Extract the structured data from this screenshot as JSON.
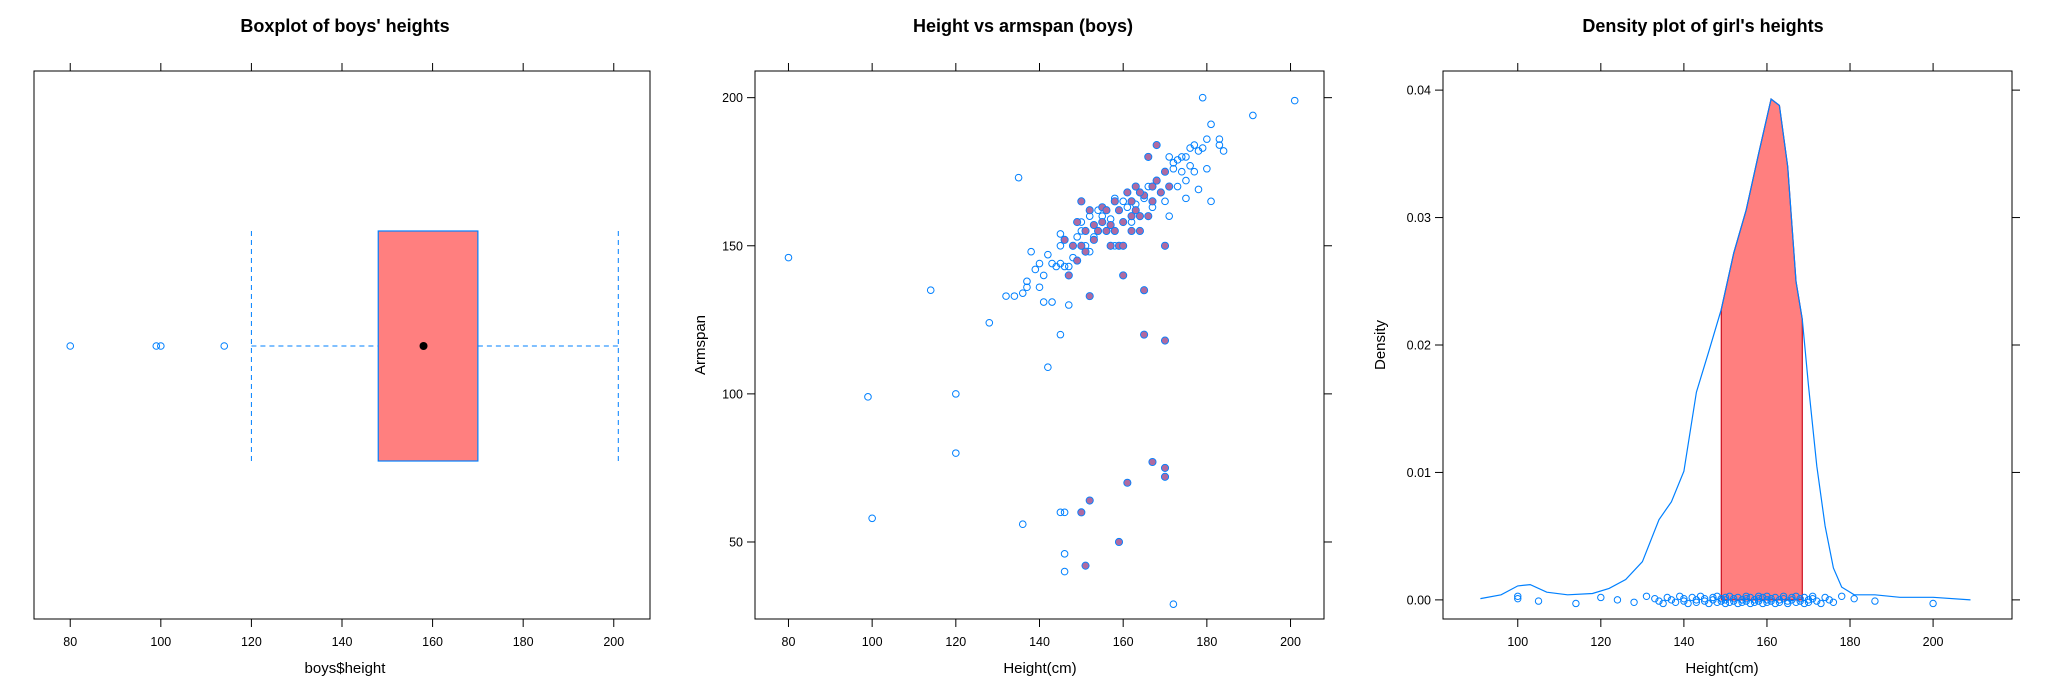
{
  "chart_data": [
    {
      "type": "box",
      "title": "Boxplot of boys' heights",
      "xlabel": "boys$height",
      "ylabel": "",
      "xlim": [
        72,
        208
      ],
      "xticks": [
        80,
        100,
        120,
        140,
        160,
        180,
        200
      ],
      "box": {
        "whisker_low": 120,
        "q1": 148,
        "median": 158,
        "q3": 170,
        "whisker_high": 201
      },
      "outliers": [
        80,
        99,
        100,
        114
      ],
      "colors": {
        "box_fill": "#ff7f7f",
        "box_border": "#0080ff",
        "whisker": "#0080ff",
        "median_dot": "#000000",
        "outlier": "#0080ff"
      }
    },
    {
      "type": "scatter",
      "title": "Height vs armspan (boys)",
      "xlabel": "Height(cm)",
      "ylabel": "Armspan",
      "xlim": [
        72,
        208
      ],
      "ylim": [
        24,
        209
      ],
      "xticks": [
        80,
        100,
        120,
        140,
        160,
        180,
        200
      ],
      "yticks": [
        50,
        100,
        150,
        200
      ],
      "series": [
        {
          "style": "open-circle",
          "color": "#0080ff",
          "points": [
            [
              80,
              146
            ],
            [
              99,
              99
            ],
            [
              100,
              58
            ],
            [
              114,
              135
            ],
            [
              120,
              100
            ],
            [
              120,
              80
            ],
            [
              128,
              124
            ],
            [
              132,
              133
            ],
            [
              134,
              133
            ],
            [
              135,
              173
            ],
            [
              136,
              134
            ],
            [
              137,
              138
            ],
            [
              137,
              136
            ],
            [
              138,
              148
            ],
            [
              139,
              142
            ],
            [
              140,
              144
            ],
            [
              140,
              136
            ],
            [
              141,
              131
            ],
            [
              141,
              140
            ],
            [
              142,
              109
            ],
            [
              142,
              147
            ],
            [
              143,
              131
            ],
            [
              143,
              144
            ],
            [
              144,
              143
            ],
            [
              145,
              120
            ],
            [
              145,
              150
            ],
            [
              145,
              154
            ],
            [
              145,
              144
            ],
            [
              146,
              143
            ],
            [
              146,
              40
            ],
            [
              146,
              46
            ],
            [
              146,
              60
            ],
            [
              136,
              56
            ],
            [
              145,
              60
            ],
            [
              147,
              130
            ],
            [
              147,
              143
            ],
            [
              148,
              146
            ],
            [
              149,
              153
            ],
            [
              150,
              155
            ],
            [
              150,
              158
            ],
            [
              151,
              150
            ],
            [
              152,
              148
            ],
            [
              152,
              160
            ],
            [
              153,
              153
            ],
            [
              154,
              162
            ],
            [
              155,
              160
            ],
            [
              156,
              155
            ],
            [
              157,
              159
            ],
            [
              158,
              150
            ],
            [
              158,
              166
            ],
            [
              160,
              165
            ],
            [
              161,
              163
            ],
            [
              162,
              158
            ],
            [
              163,
              164
            ],
            [
              164,
              160
            ],
            [
              165,
              166
            ],
            [
              166,
              170
            ],
            [
              167,
              163
            ],
            [
              168,
              172
            ],
            [
              169,
              168
            ],
            [
              170,
              165
            ],
            [
              171,
              180
            ],
            [
              171,
              160
            ],
            [
              172,
              176
            ],
            [
              172,
              178
            ],
            [
              173,
              170
            ],
            [
              173,
              179
            ],
            [
              174,
              180
            ],
            [
              174,
              175
            ],
            [
              175,
              180
            ],
            [
              175,
              172
            ],
            [
              175,
              166
            ],
            [
              176,
              177
            ],
            [
              176,
              183
            ],
            [
              177,
              184
            ],
            [
              177,
              175
            ],
            [
              178,
              169
            ],
            [
              178,
              182
            ],
            [
              179,
              183
            ],
            [
              179,
              200
            ],
            [
              180,
              176
            ],
            [
              180,
              186
            ],
            [
              181,
              191
            ],
            [
              181,
              165
            ],
            [
              183,
              184
            ],
            [
              183,
              186
            ],
            [
              184,
              182
            ],
            [
              191,
              194
            ],
            [
              201,
              199
            ],
            [
              172,
              29
            ]
          ]
        },
        {
          "style": "filled-circle",
          "color": "#b06aa0",
          "points": [
            [
              148,
              150
            ],
            [
              149,
              158
            ],
            [
              150,
              150
            ],
            [
              150,
              165
            ],
            [
              151,
              155
            ],
            [
              151,
              148
            ],
            [
              152,
              162
            ],
            [
              152,
              133
            ],
            [
              153,
              157
            ],
            [
              153,
              152
            ],
            [
              154,
              155
            ],
            [
              155,
              163
            ],
            [
              156,
              155
            ],
            [
              156,
              162
            ],
            [
              157,
              157
            ],
            [
              157,
              150
            ],
            [
              158,
              165
            ],
            [
              159,
              162
            ],
            [
              159,
              150
            ],
            [
              160,
              150
            ],
            [
              160,
              140
            ],
            [
              161,
              168
            ],
            [
              162,
              160
            ],
            [
              162,
              165
            ],
            [
              163,
              162
            ],
            [
              163,
              170
            ],
            [
              164,
              160
            ],
            [
              164,
              155
            ],
            [
              165,
              167
            ],
            [
              166,
              160
            ],
            [
              167,
              165
            ],
            [
              167,
              170
            ],
            [
              168,
              172
            ],
            [
              169,
              168
            ],
            [
              170,
              175
            ],
            [
              170,
              150
            ],
            [
              171,
              170
            ],
            [
              165,
              135
            ],
            [
              165,
              120
            ],
            [
              170,
              118
            ],
            [
              167,
              77
            ],
            [
              170,
              75
            ],
            [
              170,
              72
            ],
            [
              161,
              70
            ],
            [
              152,
              64
            ],
            [
              150,
              60
            ],
            [
              159,
              50
            ],
            [
              151,
              42
            ],
            [
              146,
              152
            ],
            [
              149,
              145
            ],
            [
              147,
              140
            ],
            [
              155,
              158
            ],
            [
              158,
              155
            ],
            [
              160,
              158
            ],
            [
              168,
              184
            ],
            [
              166,
              180
            ],
            [
              164,
              168
            ],
            [
              162,
              155
            ]
          ]
        }
      ],
      "colors": {
        "open": "#0080ff",
        "filled": "#b06aa0",
        "filled_border": "#0080ff"
      }
    },
    {
      "type": "area",
      "title": "Density plot of girl's heights",
      "xlabel": "Height(cm)",
      "ylabel": "Density",
      "xlim": [
        82,
        219
      ],
      "ylim": [
        -0.0015,
        0.0415
      ],
      "xticks": [
        100,
        120,
        140,
        160,
        180,
        200
      ],
      "yticks": [
        0.0,
        0.01,
        0.02,
        0.03,
        0.04
      ],
      "ytick_labels": [
        "0.00",
        "0.01",
        "0.02",
        "0.03",
        "0.04"
      ],
      "density_curve": [
        [
          91,
          0.0001
        ],
        [
          96,
          0.0004
        ],
        [
          100,
          0.0011
        ],
        [
          103,
          0.0012
        ],
        [
          107,
          0.0006
        ],
        [
          112,
          0.0004
        ],
        [
          118,
          0.0005
        ],
        [
          122,
          0.0009
        ],
        [
          126,
          0.0016
        ],
        [
          130,
          0.003
        ],
        [
          134,
          0.0063
        ],
        [
          137,
          0.0077
        ],
        [
          140,
          0.0101
        ],
        [
          143,
          0.0163
        ],
        [
          146,
          0.0195
        ],
        [
          149,
          0.0228
        ],
        [
          152,
          0.0272
        ],
        [
          155,
          0.0306
        ],
        [
          158,
          0.035
        ],
        [
          161,
          0.0393
        ],
        [
          163,
          0.0388
        ],
        [
          165,
          0.034
        ],
        [
          167,
          0.025
        ],
        [
          168.5,
          0.022
        ],
        [
          170,
          0.0168
        ],
        [
          172,
          0.0105
        ],
        [
          174,
          0.0058
        ],
        [
          176,
          0.0025
        ],
        [
          178,
          0.001
        ],
        [
          181,
          0.0004
        ],
        [
          186,
          0.0004
        ],
        [
          192,
          0.0002
        ],
        [
          200,
          0.0002
        ],
        [
          209,
          0.0
        ]
      ],
      "shaded_region": [
        149,
        168.5
      ],
      "rug": [
        100,
        100,
        105,
        114,
        120,
        124,
        128,
        131,
        133,
        134,
        135,
        136,
        137,
        138,
        139,
        140,
        140,
        141,
        142,
        143,
        143,
        144,
        145,
        145,
        146,
        147,
        147,
        148,
        148,
        149,
        149,
        150,
        150,
        150,
        151,
        151,
        152,
        152,
        153,
        153,
        154,
        154,
        155,
        155,
        155,
        156,
        156,
        157,
        157,
        158,
        158,
        158,
        159,
        159,
        160,
        160,
        160,
        161,
        161,
        162,
        162,
        163,
        163,
        164,
        164,
        165,
        165,
        166,
        166,
        167,
        167,
        168,
        168,
        169,
        169,
        170,
        170,
        171,
        171,
        172,
        173,
        174,
        175,
        176,
        178,
        181,
        186,
        200
      ],
      "colors": {
        "curve": "#0080ff",
        "fill": "#ff7f7f",
        "fill_border": "#cc1020",
        "rug": "#0080ff"
      }
    }
  ]
}
